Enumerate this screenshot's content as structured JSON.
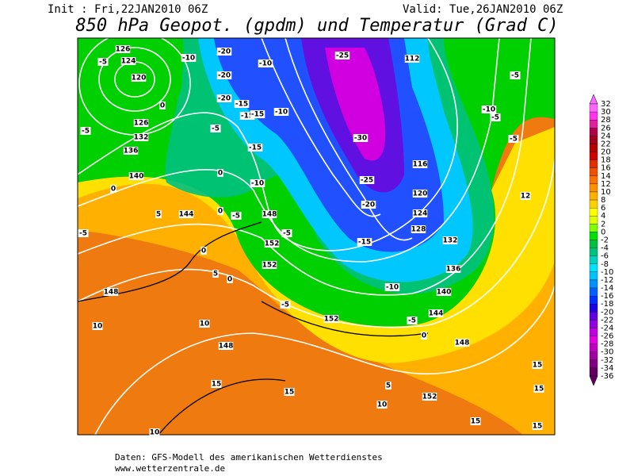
{
  "header": {
    "init": "Init : Fri,22JAN2010 06Z",
    "valid": "Valid: Tue,26JAN2010 06Z",
    "title": "850 hPa Geopot. (gpdm) und Temperatur (Grad C)"
  },
  "colorbar": {
    "labels": [
      "32",
      "30",
      "28",
      "26",
      "24",
      "22",
      "20",
      "18",
      "16",
      "14",
      "12",
      "10",
      "8",
      "6",
      "4",
      "2",
      "0",
      "-2",
      "-4",
      "-6",
      "-8",
      "-10",
      "-12",
      "-14",
      "-16",
      "-18",
      "-20",
      "-22",
      "-24",
      "-26",
      "-28",
      "-30",
      "-32",
      "-34",
      "-36"
    ],
    "colors": [
      "#ff66ff",
      "#ff33ee",
      "#e0209c",
      "#b0004a",
      "#a00020",
      "#b40000",
      "#cc0000",
      "#e03000",
      "#f05000",
      "#ff7000",
      "#ff9000",
      "#ffb000",
      "#ffd000",
      "#ffff00",
      "#e0ff00",
      "#80ff00",
      "#00e000",
      "#00c040",
      "#00c080",
      "#00d0c0",
      "#00e0ff",
      "#00c0ff",
      "#0090ff",
      "#0060ff",
      "#0030ff",
      "#2000e0",
      "#6000e0",
      "#9000e0",
      "#c000e0",
      "#e000e0",
      "#c000c0",
      "#a000a0",
      "#800080",
      "#600060"
    ]
  },
  "map": {
    "labels": [
      "126",
      "124",
      "120",
      "-5",
      "0",
      "126",
      "132",
      "136",
      "-5",
      "140",
      "0",
      "5",
      "144",
      "-5",
      "0",
      "5",
      "0",
      "148",
      "10",
      "10",
      "148",
      "15",
      "15",
      "10",
      "-10",
      "-20",
      "-20",
      "-10",
      "-20",
      "-15",
      "-15",
      "-15",
      "-5",
      "-15",
      "0",
      "-10",
      "0",
      "-5",
      "148",
      "152",
      "-5",
      "152",
      "-5",
      "152",
      "-25",
      "112",
      "-5",
      "-30",
      "-10",
      "-5",
      "-5",
      "116",
      "-25",
      "120",
      "-20",
      "124",
      "128",
      "12",
      "-15",
      "132",
      "136",
      "-10",
      "140",
      "144",
      "-5",
      "0",
      "148",
      "5",
      "152",
      "10",
      "15",
      "15",
      "15",
      "15",
      "-10"
    ]
  },
  "footer": {
    "source": "Daten: GFS-Modell des amerikanischen Wetterdienstes",
    "url": "www.wetterzentrale.de"
  }
}
